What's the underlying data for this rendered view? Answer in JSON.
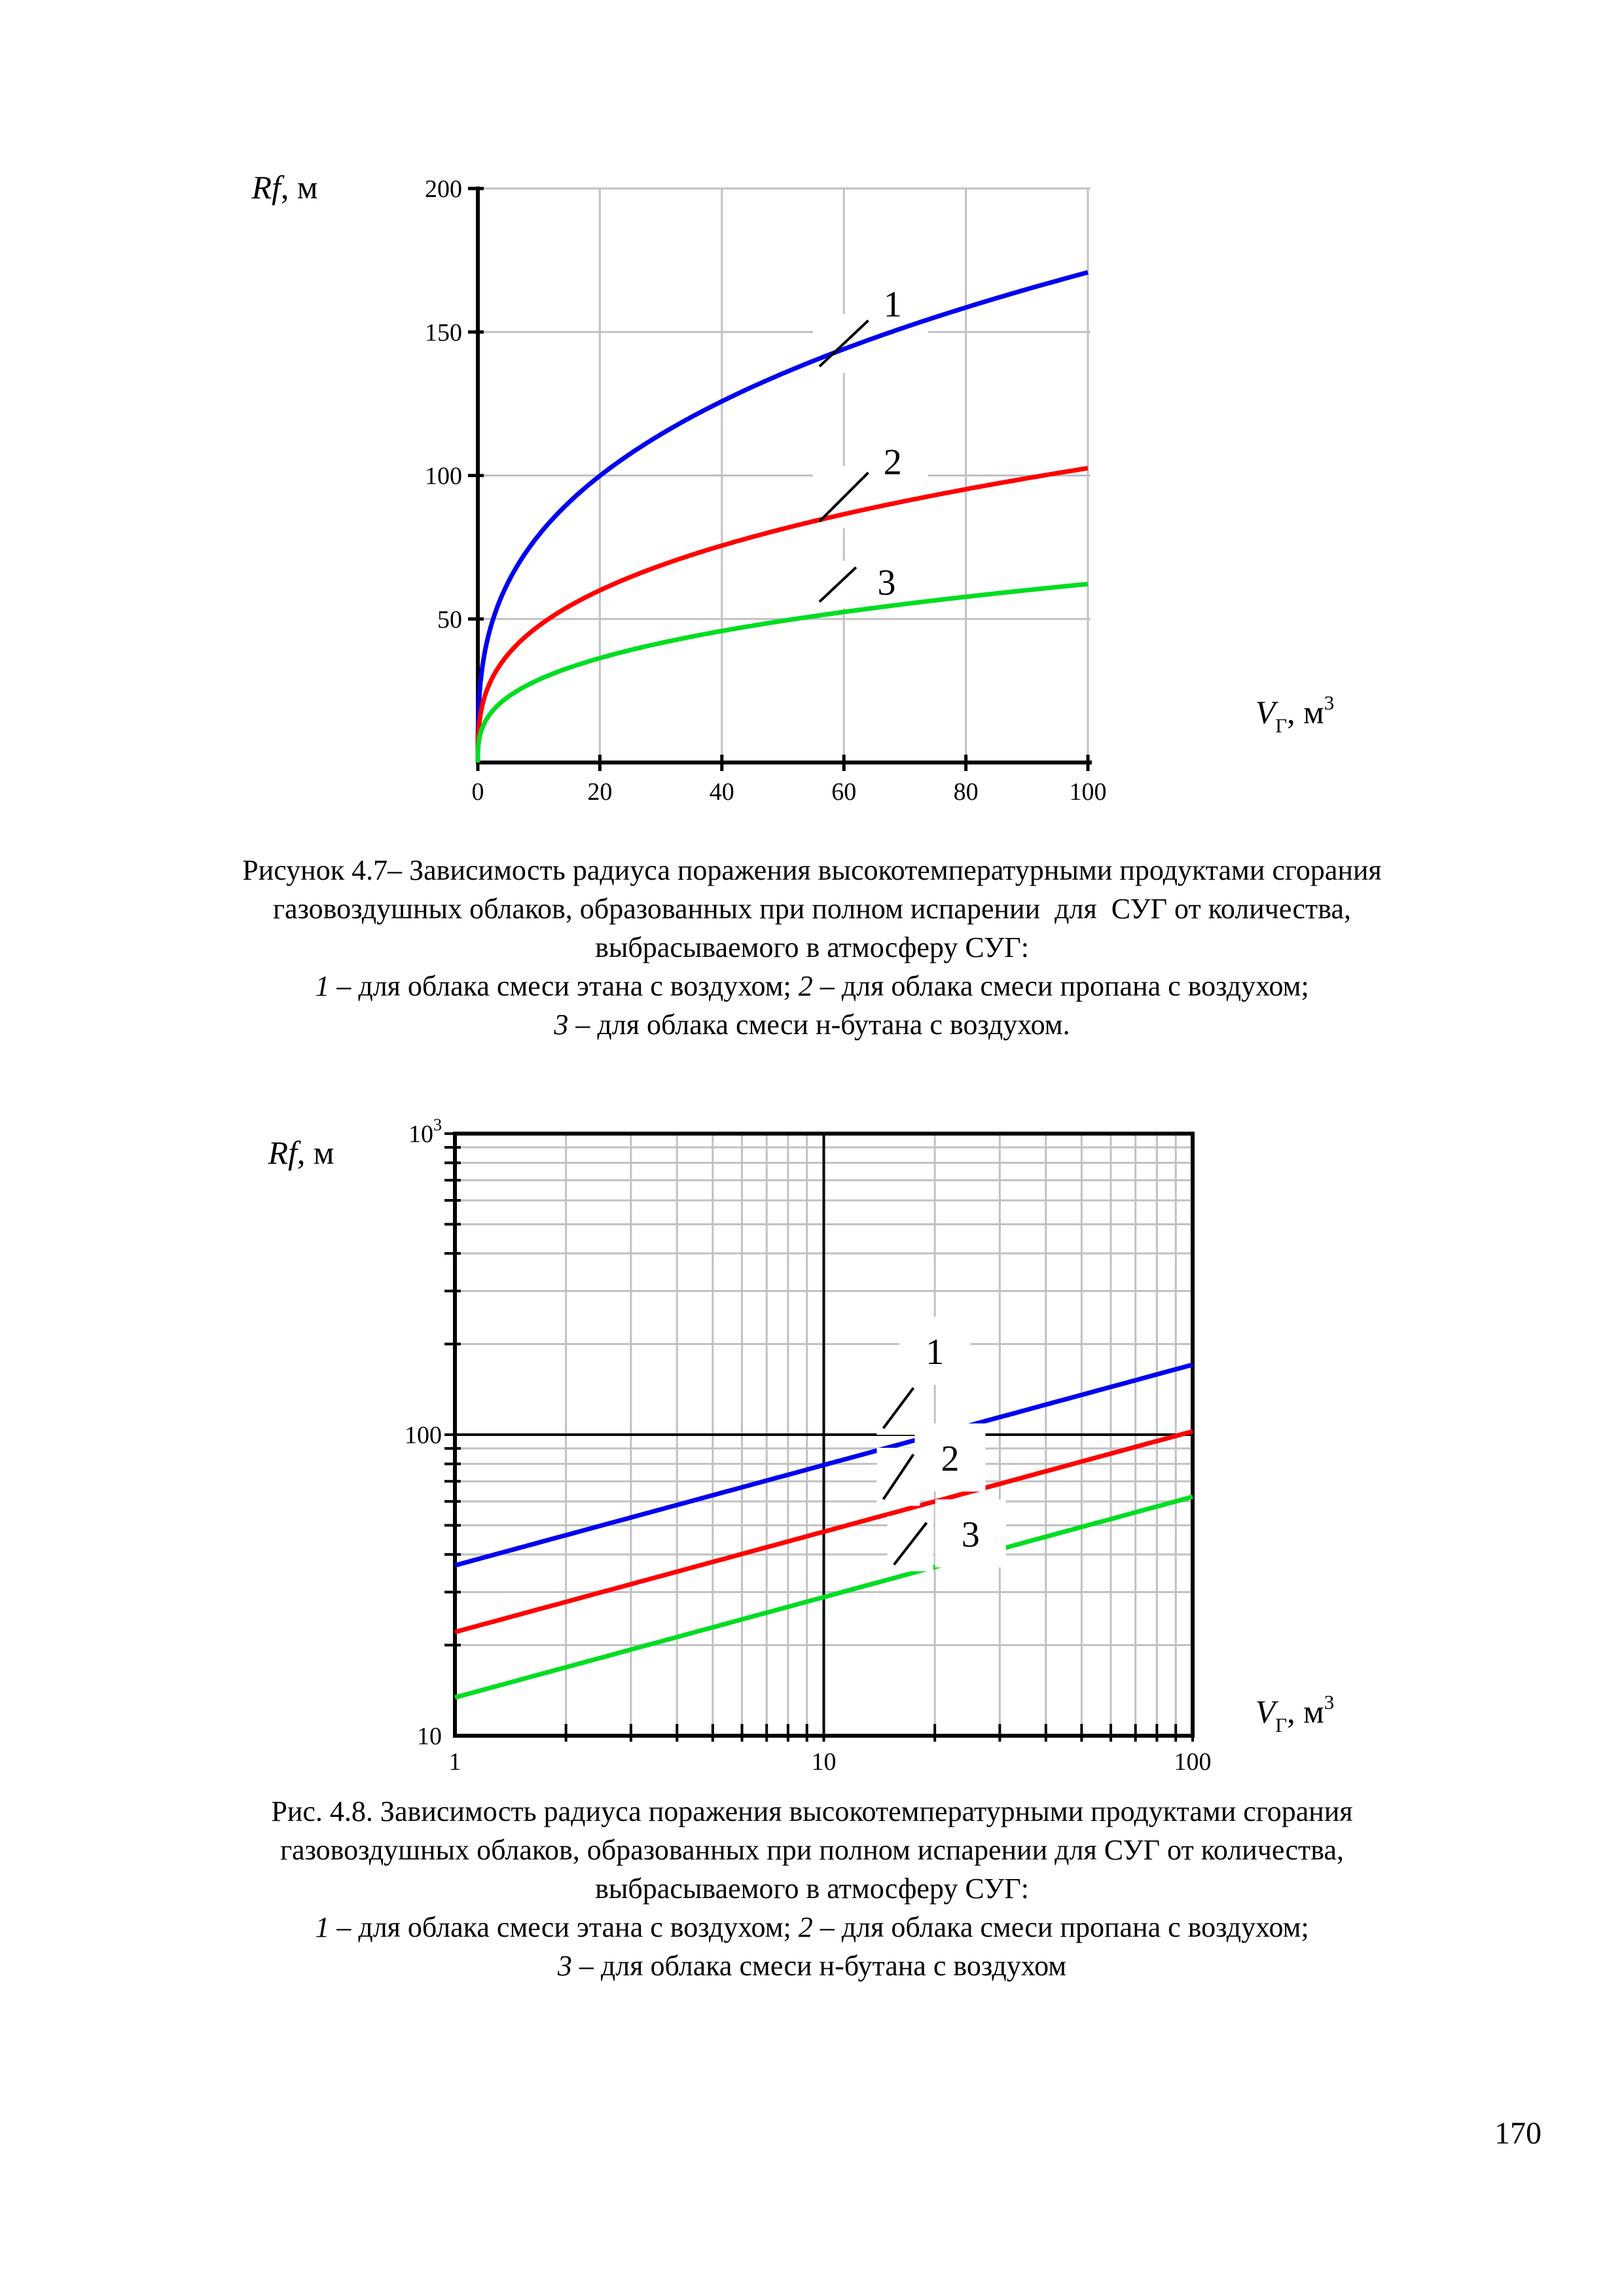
{
  "page": {
    "number": "170"
  },
  "figures": [
    {
      "caption_lines": [
        [
          {
            "t": "Рисунок 4.7– Зависимость радиуса поражения высокотемпературными продуктами сгорания"
          }
        ],
        [
          {
            "t": "газовоздушных облаков, образованных при полном испарении  для  СУГ от количества,"
          }
        ],
        [
          {
            "t": "выбрасываемого в атмосферу СУГ:"
          }
        ],
        [
          {
            "t": "1",
            "i": true
          },
          {
            "t": " – для облака смеси этана с воздухом; "
          },
          {
            "t": "2",
            "i": true
          },
          {
            "t": " – для облака смеси пропана с воздухом;"
          }
        ],
        [
          {
            "t": "3",
            "i": true
          },
          {
            "t": " – для облака смеси н-бутана с воздухом."
          }
        ]
      ]
    },
    {
      "caption_lines": [
        [
          {
            "t": "Рис. 4.8. Зависимость радиуса поражения высокотемпературными продуктами сгорания"
          }
        ],
        [
          {
            "t": "газовоздушных облаков, образованных при полном испарении для СУГ от количества,"
          }
        ],
        [
          {
            "t": "выбрасываемого в атмосферу СУГ:"
          }
        ],
        [
          {
            "t": "1",
            "i": true
          },
          {
            "t": " – для облака смеси этана с воздухом; "
          },
          {
            "t": "2",
            "i": true
          },
          {
            "t": " – для облака смеси пропана с воздухом;"
          }
        ],
        [
          {
            "t": "3",
            "i": true
          },
          {
            "t": " – для облака смеси н-бутана с воздухом"
          }
        ]
      ]
    }
  ],
  "chart_data": [
    {
      "type": "line",
      "title": "",
      "xlabel": "Vг, м3",
      "ylabel": "Rf, м",
      "xlabel_segments": [
        {
          "t": "V",
          "i": true
        },
        {
          "t": "Г",
          "sub": true
        },
        {
          "t": ", м"
        },
        {
          "t": "3",
          "sup": true
        }
      ],
      "ylabel_segments": [
        {
          "t": "Rf",
          "i": true
        },
        {
          "t": ", м"
        }
      ],
      "x_axis": {
        "scale": "linear",
        "min": 0,
        "max": 100,
        "ticks": [
          0,
          20,
          40,
          60,
          80,
          100
        ]
      },
      "y_axis": {
        "scale": "linear",
        "min": 0,
        "max": 200,
        "ticks": [
          50,
          100,
          150,
          200
        ]
      },
      "grid": true,
      "grid_color": "#c1c1c1",
      "series": [
        {
          "name": "1",
          "substance": "этан",
          "color": "#0000ee",
          "power_law": {
            "coef": 36.8,
            "exponent": 0.3333
          },
          "points": [
            [
              0,
              0
            ],
            [
              5,
              62.9
            ],
            [
              10,
              79.3
            ],
            [
              20,
              100
            ],
            [
              40,
              126
            ],
            [
              60,
              144.1
            ],
            [
              80,
              158.6
            ],
            [
              100,
              170.8
            ]
          ]
        },
        {
          "name": "2",
          "substance": "пропан",
          "color": "#ff0000",
          "power_law": {
            "coef": 22.1,
            "exponent": 0.3333
          },
          "points": [
            [
              0,
              0
            ],
            [
              5,
              37.8
            ],
            [
              10,
              47.6
            ],
            [
              20,
              60
            ],
            [
              40,
              75.6
            ],
            [
              60,
              86.5
            ],
            [
              80,
              95.2
            ],
            [
              100,
              102.6
            ]
          ]
        },
        {
          "name": "3",
          "substance": "н-бутан",
          "color": "#00dd22",
          "power_law": {
            "coef": 13.4,
            "exponent": 0.3333
          },
          "points": [
            [
              0,
              0
            ],
            [
              5,
              22.9
            ],
            [
              10,
              28.9
            ],
            [
              20,
              36.4
            ],
            [
              40,
              45.9
            ],
            [
              60,
              52.5
            ],
            [
              80,
              57.7
            ],
            [
              100,
              62.2
            ]
          ]
        }
      ],
      "annotations": [
        {
          "text": "1",
          "x": 68,
          "y": 160,
          "pointer": [
            [
              56,
              138
            ],
            [
              64,
              154
            ]
          ]
        },
        {
          "text": "2",
          "x": 68,
          "y": 105,
          "pointer": [
            [
              56,
              84
            ],
            [
              64,
              101
            ]
          ]
        },
        {
          "text": "3",
          "x": 67,
          "y": 63,
          "pointer": [
            [
              56,
              56
            ],
            [
              62,
              68
            ]
          ]
        }
      ]
    },
    {
      "type": "line",
      "title": "",
      "xlabel": "Vг, м3",
      "ylabel": "Rf, м",
      "xlabel_segments": [
        {
          "t": "V",
          "i": true
        },
        {
          "t": "Г",
          "sub": true
        },
        {
          "t": ", м"
        },
        {
          "t": "3",
          "sup": true
        }
      ],
      "ylabel_segments": [
        {
          "t": "Rf",
          "i": true
        },
        {
          "t": ", м"
        }
      ],
      "x_axis": {
        "scale": "log",
        "min": 1,
        "max": 100,
        "ticks": [
          {
            "v": 1,
            "label": "1"
          },
          {
            "v": 10,
            "label": "10"
          },
          {
            "v": 100,
            "label": "100"
          }
        ]
      },
      "y_axis": {
        "scale": "log",
        "min": 10,
        "max": 1000,
        "ticks": [
          {
            "v": 10,
            "label": "10"
          },
          {
            "v": 100,
            "label": "100"
          },
          {
            "v": 1000,
            "label": "10",
            "sup": "3"
          }
        ]
      },
      "grid": true,
      "grid_color": "#c1c1c1",
      "reference_lines": {
        "x": 10,
        "y": 100
      },
      "series": [
        {
          "name": "1",
          "substance": "этан",
          "color": "#0000ee",
          "power_law": {
            "coef": 36.8,
            "exponent": 0.3333
          },
          "points": [
            [
              1,
              36.8
            ],
            [
              2,
              46.4
            ],
            [
              5,
              62.9
            ],
            [
              10,
              79.3
            ],
            [
              20,
              100
            ],
            [
              50,
              135.7
            ],
            [
              100,
              170.8
            ]
          ]
        },
        {
          "name": "2",
          "substance": "пропан",
          "color": "#ff0000",
          "power_law": {
            "coef": 22.1,
            "exponent": 0.3333
          },
          "points": [
            [
              1,
              22.1
            ],
            [
              2,
              27.8
            ],
            [
              5,
              37.8
            ],
            [
              10,
              47.6
            ],
            [
              20,
              60
            ],
            [
              50,
              81.5
            ],
            [
              100,
              102.6
            ]
          ]
        },
        {
          "name": "3",
          "substance": "н-бутан",
          "color": "#00dd22",
          "power_law": {
            "coef": 13.4,
            "exponent": 0.3333
          },
          "points": [
            [
              1,
              13.4
            ],
            [
              2,
              16.9
            ],
            [
              5,
              22.9
            ],
            [
              10,
              28.9
            ],
            [
              20,
              36.4
            ],
            [
              50,
              49.4
            ],
            [
              100,
              62.2
            ]
          ]
        }
      ],
      "annotations": [
        {
          "text": "1",
          "x": 20,
          "y": 190,
          "pointer": [
            [
              14.5,
              105
            ],
            [
              17.5,
              143
            ]
          ]
        },
        {
          "text": "2",
          "x": 22,
          "y": 84,
          "pointer": [
            [
              14.5,
              61
            ],
            [
              17.5,
              86
            ]
          ]
        },
        {
          "text": "3",
          "x": 25,
          "y": 47,
          "pointer": [
            [
              15.5,
              37
            ],
            [
              19,
              51
            ]
          ]
        }
      ]
    }
  ]
}
